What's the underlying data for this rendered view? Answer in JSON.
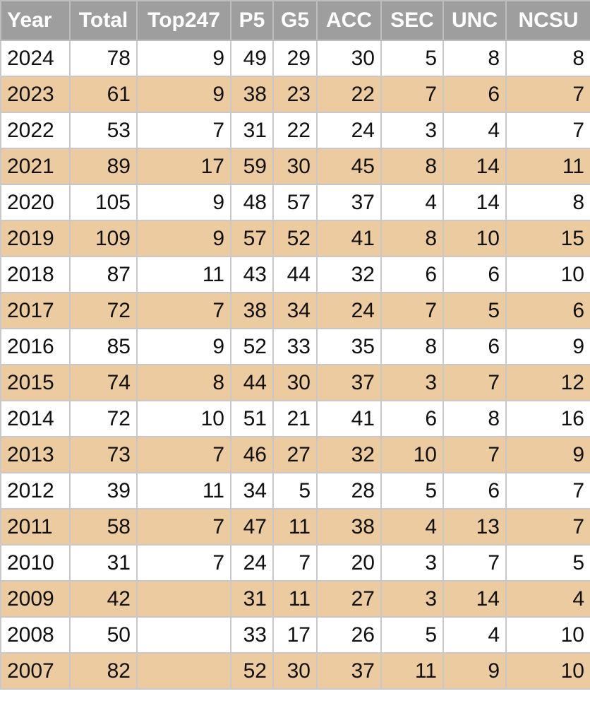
{
  "table": {
    "header": [
      "Year",
      "Total",
      "Top247",
      "P5",
      "G5",
      "ACC",
      "SEC",
      "UNC",
      "NCSU"
    ],
    "rows": [
      [
        "2024",
        "78",
        "9",
        "49",
        "29",
        "30",
        "5",
        "8",
        "8"
      ],
      [
        "2023",
        "61",
        "9",
        "38",
        "23",
        "22",
        "7",
        "6",
        "7"
      ],
      [
        "2022",
        "53",
        "7",
        "31",
        "22",
        "24",
        "3",
        "4",
        "7"
      ],
      [
        "2021",
        "89",
        "17",
        "59",
        "30",
        "45",
        "8",
        "14",
        "11"
      ],
      [
        "2020",
        "105",
        "9",
        "48",
        "57",
        "37",
        "4",
        "14",
        "8"
      ],
      [
        "2019",
        "109",
        "9",
        "57",
        "52",
        "41",
        "8",
        "10",
        "15"
      ],
      [
        "2018",
        "87",
        "11",
        "43",
        "44",
        "32",
        "6",
        "6",
        "10"
      ],
      [
        "2017",
        "72",
        "7",
        "38",
        "34",
        "24",
        "7",
        "5",
        "6"
      ],
      [
        "2016",
        "85",
        "9",
        "52",
        "33",
        "35",
        "8",
        "6",
        "9"
      ],
      [
        "2015",
        "74",
        "8",
        "44",
        "30",
        "37",
        "3",
        "7",
        "12"
      ],
      [
        "2014",
        "72",
        "10",
        "51",
        "21",
        "41",
        "6",
        "8",
        "16"
      ],
      [
        "2013",
        "73",
        "7",
        "46",
        "27",
        "32",
        "10",
        "7",
        "9"
      ],
      [
        "2012",
        "39",
        "11",
        "34",
        "5",
        "28",
        "5",
        "6",
        "7"
      ],
      [
        "2011",
        "58",
        "7",
        "47",
        "11",
        "38",
        "4",
        "13",
        "7"
      ],
      [
        "2010",
        "31",
        "7",
        "24",
        "7",
        "20",
        "3",
        "7",
        "5"
      ],
      [
        "2009",
        "42",
        null,
        "31",
        "11",
        "27",
        "3",
        "14",
        "4"
      ],
      [
        "2008",
        "50",
        null,
        "33",
        "17",
        "26",
        "5",
        "4",
        "10"
      ],
      [
        "2007",
        "82",
        null,
        "52",
        "30",
        "37",
        "11",
        "9",
        "10"
      ]
    ]
  }
}
